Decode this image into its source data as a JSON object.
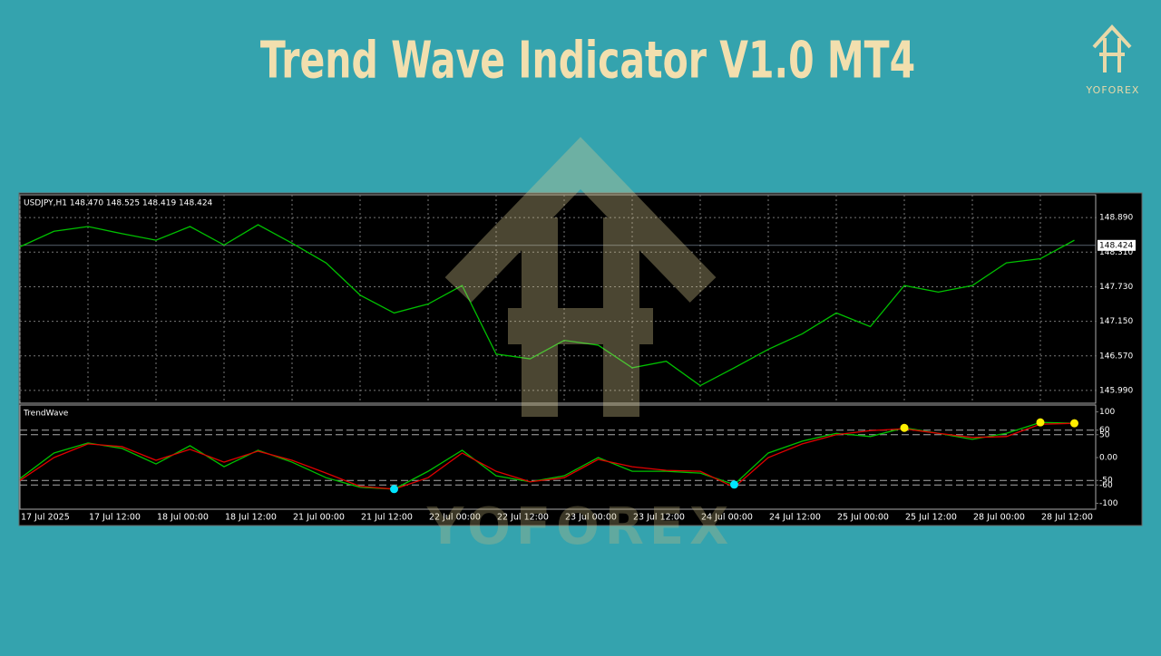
{
  "header": {
    "title": "Trend Wave Indicator V1.0 MT4",
    "brand": "YOFOREX"
  },
  "watermark": "YOFOREX",
  "chart_data": [
    {
      "type": "line",
      "title": "USDJPY,H1  148.470 148.525 148.419 148.424",
      "last": 148.424,
      "ylim": [
        145.776,
        149.272
      ],
      "yticks": [
        {
          "value": 148.89,
          "label": "148.890"
        },
        {
          "value": 148.31,
          "label": "148.310"
        },
        {
          "value": 147.73,
          "label": "147.730"
        },
        {
          "value": 147.15,
          "label": "147.150"
        },
        {
          "value": 146.57,
          "label": "146.570"
        },
        {
          "value": 145.99,
          "label": "145.990"
        }
      ],
      "grid": true,
      "series": [
        {
          "color": "#00c000",
          "values": [
            148.4,
            148.66,
            148.74,
            148.62,
            148.51,
            148.74,
            148.43,
            148.77,
            148.46,
            148.13,
            147.59,
            147.29,
            147.44,
            147.75,
            146.6,
            146.52,
            146.83,
            146.75,
            146.37,
            146.48,
            146.07,
            146.37,
            146.68,
            146.94,
            147.29,
            147.06,
            147.75,
            147.64,
            147.75,
            148.13,
            148.2,
            148.51
          ]
        }
      ]
    },
    {
      "type": "line",
      "title": "TrendWave",
      "categories": [
        "17 Jul 2025",
        null,
        "17 Jul 12:00",
        null,
        "18 Jul 00:00",
        null,
        "18 Jul 12:00",
        null,
        "21 Jul 00:00",
        null,
        "21 Jul 12:00",
        null,
        "22 Jul 00:00",
        null,
        "22 Jul 12:00",
        null,
        "23 Jul 00:00",
        null,
        "23 Jul 12:00",
        null,
        "24 Jul 00:00",
        null,
        "24 Jul 12:00",
        null,
        "25 Jul 00:00",
        null,
        "25 Jul 12:00",
        null,
        "28 Jul 00:00",
        null,
        "28 Jul 12:00",
        null
      ],
      "ylim": [
        -113,
        115
      ],
      "yticks": [
        100,
        60,
        50,
        {
          "value": 0,
          "label": "0.00"
        },
        -50,
        -60,
        -100
      ],
      "levels": [
        60,
        50,
        -50,
        -60
      ],
      "series": [
        {
          "color": "#00c000",
          "values": [
            -46,
            10,
            32,
            20,
            -14,
            26,
            -20,
            16,
            -10,
            -44,
            -65,
            -69,
            -30,
            16,
            -40,
            -53,
            -40,
            0,
            -30,
            -30,
            -34,
            -59,
            10,
            36,
            53,
            46,
            65,
            53,
            40,
            53,
            77,
            75
          ]
        },
        {
          "color": "#e00000",
          "values": [
            -50,
            0,
            30,
            24,
            -6,
            18,
            -10,
            14,
            -6,
            -34,
            -63,
            -69,
            -44,
            10,
            -30,
            -53,
            -44,
            -4,
            -20,
            -28,
            -30,
            -65,
            0,
            30,
            50,
            59,
            63,
            53,
            44,
            46,
            73,
            75
          ]
        },
        {
          "color": "#00e5ff",
          "dots": true,
          "values": [
            null,
            null,
            null,
            null,
            null,
            null,
            null,
            null,
            null,
            null,
            null,
            -69,
            null,
            null,
            null,
            null,
            null,
            null,
            null,
            null,
            null,
            -59,
            null,
            null,
            null,
            null,
            null,
            null,
            null,
            null,
            null,
            null
          ]
        },
        {
          "color": "#ffee00",
          "dots": true,
          "values": [
            null,
            null,
            null,
            null,
            null,
            null,
            null,
            null,
            null,
            null,
            null,
            null,
            null,
            null,
            null,
            null,
            null,
            null,
            null,
            null,
            null,
            null,
            null,
            null,
            null,
            null,
            65,
            null,
            null,
            null,
            77,
            75
          ]
        }
      ]
    }
  ]
}
